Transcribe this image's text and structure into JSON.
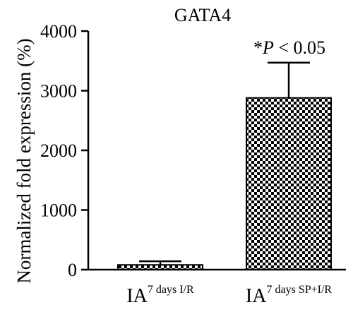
{
  "chart_data": {
    "type": "bar",
    "title": "GATA4",
    "ylabel": "Normalized fold expression (%)",
    "xlabel": "",
    "ylim": [
      0,
      4000
    ],
    "yticks": [
      0,
      1000,
      2000,
      3000,
      4000
    ],
    "grid": false,
    "categories": [
      {
        "base": "IA",
        "sup": "7 days I/R"
      },
      {
        "base": "IA",
        "sup": "7 days SP+I/R"
      }
    ],
    "values": [
      80,
      2880
    ],
    "errors": [
      60,
      590
    ],
    "annotation": {
      "star": "*",
      "p": "P",
      "rest": " < 0.05"
    },
    "colors": {
      "bar_dark": "#000000",
      "bar_light": "#ffffff",
      "axis": "#000000"
    }
  }
}
